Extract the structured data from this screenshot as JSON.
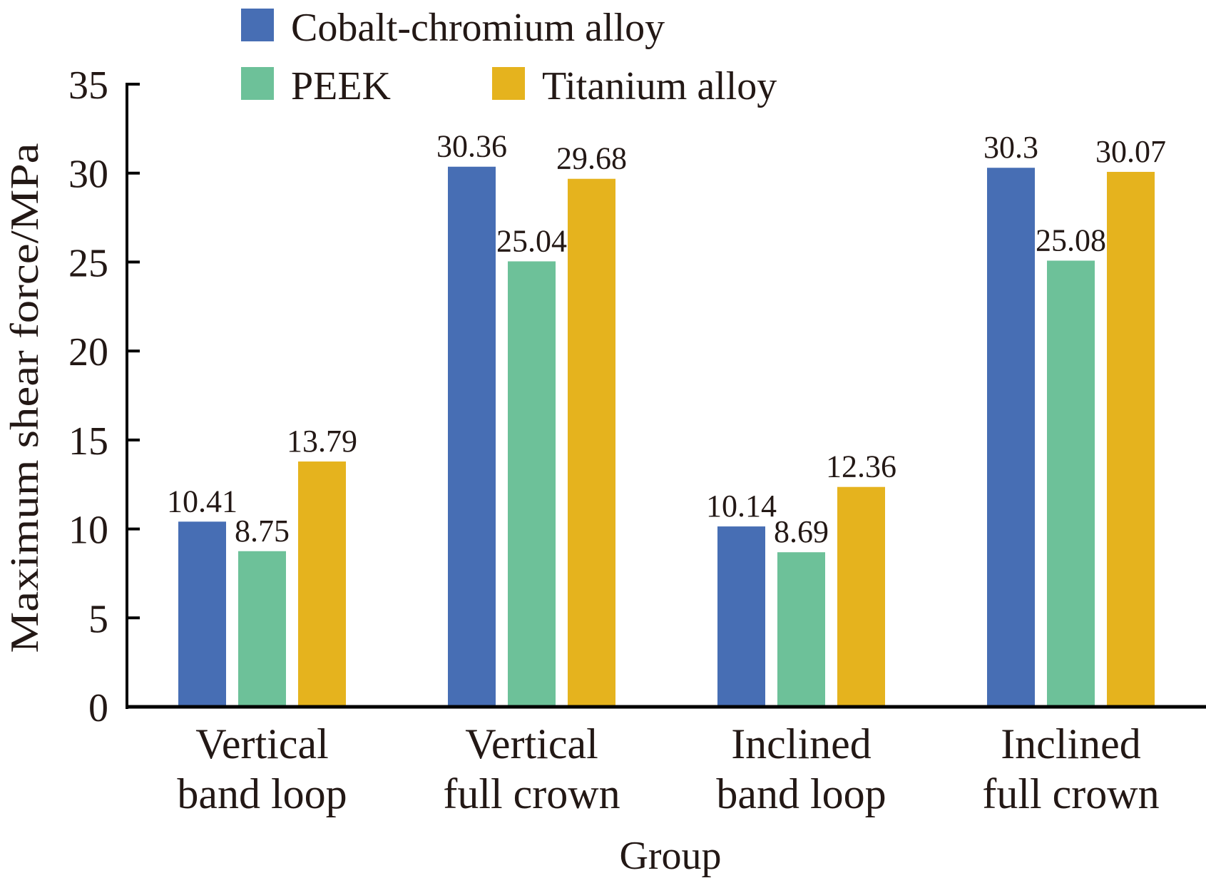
{
  "chart_data": {
    "type": "bar",
    "title": "",
    "xlabel": "Group",
    "ylabel": "Maximum shear force/MPa",
    "ylim": [
      0,
      35
    ],
    "yticks": [
      0,
      5,
      10,
      15,
      20,
      25,
      30,
      35
    ],
    "grid": false,
    "legend_position": "top",
    "categories": [
      [
        "Vertical",
        "band loop"
      ],
      [
        "Vertical",
        "full crown"
      ],
      [
        "Inclined",
        "band loop"
      ],
      [
        "Inclined",
        "full crown"
      ]
    ],
    "series": [
      {
        "name": "Cobalt-chromium alloy",
        "color": "#476EB4",
        "values": [
          10.41,
          30.36,
          10.14,
          30.3
        ],
        "labels": [
          "10.41",
          "30.36",
          "10.14",
          "30.3"
        ]
      },
      {
        "name": "PEEK",
        "color": "#6DC199",
        "values": [
          8.75,
          25.04,
          8.69,
          25.08
        ],
        "labels": [
          "8.75",
          "25.04",
          "8.69",
          "25.08"
        ]
      },
      {
        "name": "Titanium alloy",
        "color": "#E5B31E",
        "values": [
          13.79,
          29.68,
          12.36,
          30.07
        ],
        "labels": [
          "13.79",
          "29.68",
          "12.36",
          "30.07"
        ]
      }
    ]
  }
}
